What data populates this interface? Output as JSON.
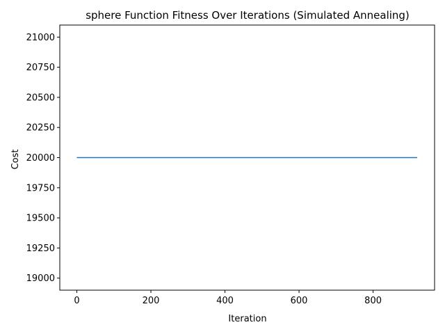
{
  "chart_data": {
    "type": "line",
    "title": "sphere Function Fitness Over Iterations (Simulated Annealing)",
    "xlabel": "Iteration",
    "ylabel": "Cost",
    "xlim": [
      -46,
      966
    ],
    "ylim": [
      18900,
      21100
    ],
    "xticks": [
      0,
      200,
      400,
      600,
      800
    ],
    "yticks": [
      19000,
      19250,
      19500,
      19750,
      20000,
      20250,
      20500,
      20750,
      21000
    ],
    "grid": false,
    "series": [
      {
        "color": "#1f77b4",
        "x": [
          0,
          919
        ],
        "y": [
          20000,
          20000
        ]
      }
    ]
  }
}
